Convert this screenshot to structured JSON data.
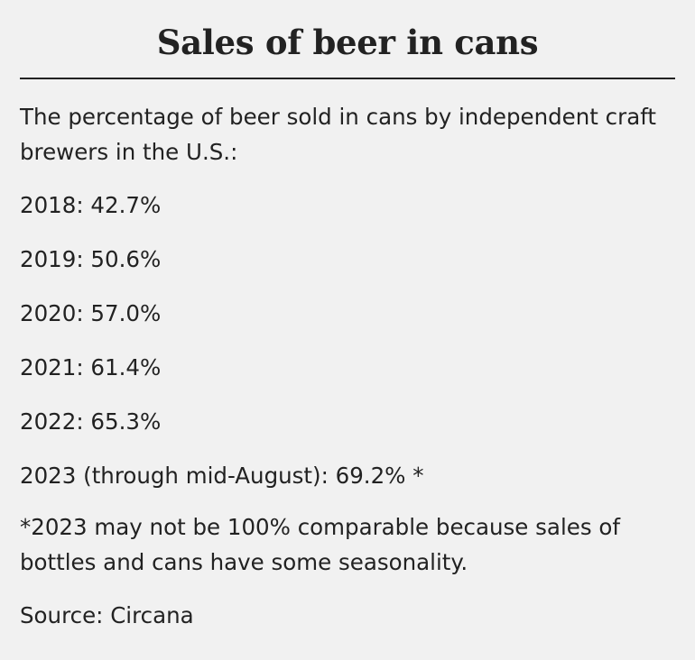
{
  "title": "Sales of beer in cans",
  "intro": "The percentage of beer sold in cans by independent craft brewers in the U.S.:",
  "stats": [
    {
      "label": "2018: 42.7%"
    },
    {
      "label": "2019: 50.6%"
    },
    {
      "label": "2020: 57.0%"
    },
    {
      "label": "2021: 61.4%"
    },
    {
      "label": "2022: 65.3%"
    },
    {
      "label": "2023 (through mid-August): 69.2% *"
    }
  ],
  "footnote": "*2023 may not be 100% comparable because sales of bottles and cans have some seasonality.",
  "source": "Source: Circana",
  "colors": {
    "background": "#f1f1f1",
    "text": "#222222",
    "rule": "#222222"
  }
}
